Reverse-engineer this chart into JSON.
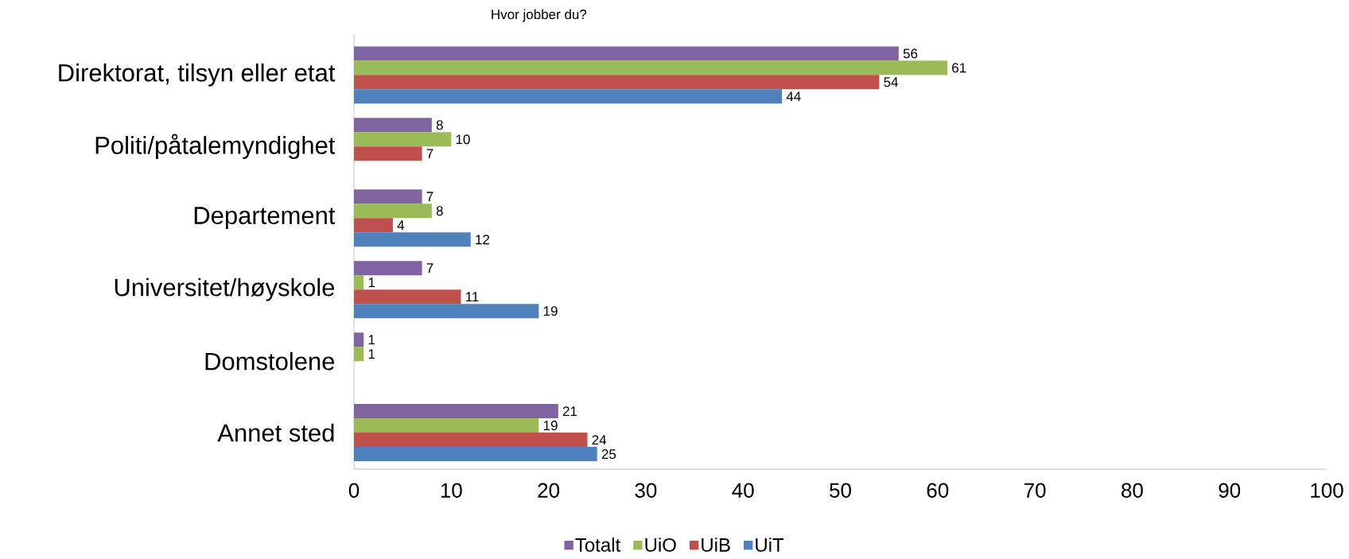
{
  "chart_data": {
    "type": "bar",
    "orientation": "horizontal",
    "title": "Hvor jobber du?",
    "categories": [
      "Direktorat, tilsyn eller etat",
      "Politi/påtalemyndighet",
      "Departement",
      "Universitet/høyskole",
      "Domstolene",
      "Annet sted"
    ],
    "series": [
      {
        "name": "Totalt",
        "color": "#8064a2",
        "values": [
          56,
          8,
          7,
          7,
          1,
          21
        ]
      },
      {
        "name": "UiO",
        "color": "#9bbb59",
        "values": [
          61,
          10,
          8,
          1,
          1,
          19
        ]
      },
      {
        "name": "UiB",
        "color": "#c0504d",
        "values": [
          54,
          7,
          4,
          11,
          null,
          24
        ]
      },
      {
        "name": "UiT",
        "color": "#4f81bd",
        "values": [
          44,
          null,
          12,
          19,
          null,
          25
        ]
      }
    ],
    "xlim": [
      0,
      100
    ],
    "xticks": [
      0,
      10,
      20,
      30,
      40,
      50,
      60,
      70,
      80,
      90,
      100
    ],
    "data_labels": true,
    "legend": "bottom",
    "grid": false
  }
}
